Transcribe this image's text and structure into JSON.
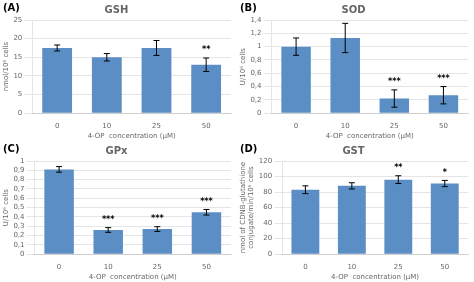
{
  "chart_data": [
    {
      "type": "bar",
      "title": "GSH",
      "xlabel": "4-OP  concentration (μM)",
      "ylabel": "nmol/10⁶ cells",
      "categories": [
        "0",
        "10",
        "25",
        "50"
      ],
      "values": [
        17.5,
        15.0,
        17.5,
        13.0
      ],
      "errors": [
        0.8,
        1.0,
        2.0,
        1.8
      ],
      "color": "#5b8ec4",
      "ylim": [
        0,
        25
      ],
      "yticks": [
        0,
        5,
        10,
        15,
        20,
        25
      ],
      "grid": true,
      "annotations": [
        {
          "text": "(A)"
        },
        {
          "text": "**",
          "category": "50"
        }
      ]
    },
    {
      "type": "bar",
      "title": "SOD",
      "xlabel": "4-OP  concentration (μM)",
      "ylabel": "U/10⁶ cells",
      "categories": [
        "0",
        "10",
        "25",
        "50"
      ],
      "values": [
        1.0,
        1.13,
        0.22,
        0.27
      ],
      "errors": [
        0.13,
        0.22,
        0.13,
        0.13
      ],
      "color": "#5b8ec4",
      "ylim": [
        0,
        1.4
      ],
      "yticks": [
        0,
        {
          "value": 0.2,
          "label": "0,2"
        },
        {
          "value": 0.4,
          "label": "0,4"
        },
        {
          "value": 0.6,
          "label": "0,6"
        },
        {
          "value": 0.8,
          "label": "0,8"
        },
        1,
        {
          "value": 1.2,
          "label": "1,2"
        },
        {
          "value": 1.4,
          "label": "1,4"
        }
      ],
      "grid": true,
      "annotations": [
        {
          "text": "(B)"
        },
        {
          "text": "***",
          "category": "25"
        },
        {
          "text": "***",
          "category": "50"
        }
      ]
    },
    {
      "type": "bar",
      "title": "GPx",
      "xlabel": "4-OP  concentration (μM)",
      "ylabel": "U/10⁶ cells",
      "categories": [
        "0",
        "10",
        "25",
        "50"
      ],
      "values": [
        0.91,
        0.26,
        0.27,
        0.45
      ],
      "errors": [
        0.03,
        0.025,
        0.025,
        0.03
      ],
      "color": "#5b8ec4",
      "ylim": [
        0,
        1.0
      ],
      "yticks": [
        0,
        {
          "value": 0.1,
          "label": "0,1"
        },
        {
          "value": 0.2,
          "label": "0,2"
        },
        {
          "value": 0.3,
          "label": "0,3"
        },
        {
          "value": 0.4,
          "label": "0,4"
        },
        {
          "value": 0.5,
          "label": "0,5"
        },
        {
          "value": 0.6,
          "label": "0,6"
        },
        {
          "value": 0.7,
          "label": "0,7"
        },
        {
          "value": 0.8,
          "label": "0,8"
        },
        {
          "value": 0.9,
          "label": "0,9"
        },
        1
      ],
      "grid": true,
      "annotations": [
        {
          "text": "(C)"
        },
        {
          "text": "***",
          "category": "10"
        },
        {
          "text": "***",
          "category": "25"
        },
        {
          "text": "***",
          "category": "50"
        }
      ]
    },
    {
      "type": "bar",
      "title": "GST",
      "xlabel": "4-OP  concentration (μM)",
      "ylabel": "nmol of CDNB-glutathione\nconjugate/min/10⁶ cells",
      "categories": [
        "0",
        "10",
        "25",
        "50"
      ],
      "values": [
        83,
        88,
        96,
        91
      ],
      "errors": [
        5,
        4,
        5,
        4
      ],
      "color": "#5b8ec4",
      "ylim": [
        0,
        120
      ],
      "yticks": [
        0,
        20,
        40,
        60,
        80,
        100,
        120
      ],
      "grid": true,
      "annotations": [
        {
          "text": "(D)"
        },
        {
          "text": "**",
          "category": "25"
        },
        {
          "text": "*",
          "category": "50"
        }
      ]
    }
  ]
}
